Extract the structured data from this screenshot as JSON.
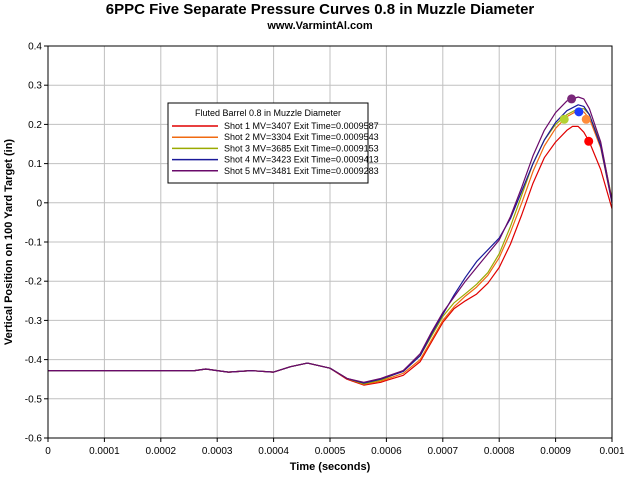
{
  "chart_data": {
    "type": "line",
    "title": "6PPC Five Separate Pressure Curves 0.8 in Muzzle Diameter",
    "subtitle": "www.VarmintAl.com",
    "xlabel": "Time (seconds)",
    "ylabel": "Vertical Position on 100 Yard Target (in)",
    "xlim": [
      0,
      0.001
    ],
    "ylim": [
      -0.6,
      0.4
    ],
    "x_ticks": [
      "0",
      "0.0001",
      "0.0002",
      "0.0003",
      "0.0004",
      "0.0005",
      "0.0006",
      "0.0007",
      "0.0008",
      "0.0009",
      "0.001"
    ],
    "y_ticks": [
      "0.4",
      "0.3",
      "0.2",
      "0.1",
      "0",
      "-0.1",
      "-0.2",
      "-0.3",
      "-0.4",
      "-0.5",
      "-0.6"
    ],
    "grid": true,
    "legend": {
      "title": "Fluted Barrel 0.8 in Muzzle Diameter",
      "placement": "upper-left-center"
    },
    "series": [
      {
        "name": "Shot 1 MV=3407 Exit Time=0.0009587",
        "color": "#e00000",
        "marker_color": "#ff0000",
        "exit": [
          0.0009587,
          0.157
        ],
        "points": [
          [
            0,
            -0.428
          ],
          [
            0.00026,
            -0.428
          ],
          [
            0.00028,
            -0.424
          ],
          [
            0.0003,
            -0.428
          ],
          [
            0.00032,
            -0.432
          ],
          [
            0.00036,
            -0.428
          ],
          [
            0.0004,
            -0.432
          ],
          [
            0.00043,
            -0.418
          ],
          [
            0.00046,
            -0.409
          ],
          [
            0.0005,
            -0.422
          ],
          [
            0.00053,
            -0.45
          ],
          [
            0.00056,
            -0.465
          ],
          [
            0.00059,
            -0.458
          ],
          [
            0.0006,
            -0.453
          ],
          [
            0.00063,
            -0.44
          ],
          [
            0.00066,
            -0.405
          ],
          [
            0.00068,
            -0.355
          ],
          [
            0.0007,
            -0.305
          ],
          [
            0.00072,
            -0.27
          ],
          [
            0.00074,
            -0.25
          ],
          [
            0.00076,
            -0.233
          ],
          [
            0.00078,
            -0.205
          ],
          [
            0.0008,
            -0.165
          ],
          [
            0.00082,
            -0.105
          ],
          [
            0.00084,
            -0.03
          ],
          [
            0.00086,
            0.05
          ],
          [
            0.00088,
            0.115
          ],
          [
            0.0009,
            0.155
          ],
          [
            0.00092,
            0.185
          ],
          [
            0.00093,
            0.195
          ],
          [
            0.00094,
            0.195
          ],
          [
            0.00095,
            0.18
          ],
          [
            0.00096,
            0.155
          ],
          [
            0.00098,
            0.085
          ],
          [
            0.001,
            -0.015
          ]
        ]
      },
      {
        "name": "Shot 2 MV=3304 Exit Time=0.0009543",
        "color": "#f06a10",
        "marker_color": "#ff8c3a",
        "exit": [
          0.0009543,
          0.213
        ],
        "points": [
          [
            0,
            -0.428
          ],
          [
            0.00026,
            -0.428
          ],
          [
            0.00028,
            -0.424
          ],
          [
            0.0003,
            -0.428
          ],
          [
            0.00032,
            -0.432
          ],
          [
            0.00036,
            -0.428
          ],
          [
            0.0004,
            -0.432
          ],
          [
            0.00043,
            -0.418
          ],
          [
            0.00046,
            -0.409
          ],
          [
            0.0005,
            -0.422
          ],
          [
            0.00053,
            -0.448
          ],
          [
            0.00056,
            -0.463
          ],
          [
            0.00059,
            -0.455
          ],
          [
            0.0006,
            -0.45
          ],
          [
            0.00063,
            -0.435
          ],
          [
            0.00066,
            -0.4
          ],
          [
            0.00068,
            -0.35
          ],
          [
            0.0007,
            -0.3
          ],
          [
            0.00072,
            -0.265
          ],
          [
            0.00074,
            -0.238
          ],
          [
            0.00076,
            -0.215
          ],
          [
            0.00078,
            -0.185
          ],
          [
            0.0008,
            -0.14
          ],
          [
            0.00082,
            -0.075
          ],
          [
            0.00084,
            0.0
          ],
          [
            0.00086,
            0.08
          ],
          [
            0.00088,
            0.145
          ],
          [
            0.0009,
            0.19
          ],
          [
            0.00092,
            0.22
          ],
          [
            0.00094,
            0.236
          ],
          [
            0.00095,
            0.232
          ],
          [
            0.00096,
            0.215
          ],
          [
            0.00098,
            0.14
          ],
          [
            0.001,
            0.0
          ]
        ]
      },
      {
        "name": "Shot 3 MV=3685 Exit Time=0.0009153",
        "color": "#9aaa00",
        "marker_color": "#b4d232",
        "exit": [
          0.0009153,
          0.213
        ],
        "points": [
          [
            0,
            -0.428
          ],
          [
            0.00026,
            -0.428
          ],
          [
            0.00028,
            -0.424
          ],
          [
            0.0003,
            -0.428
          ],
          [
            0.00032,
            -0.432
          ],
          [
            0.00036,
            -0.428
          ],
          [
            0.0004,
            -0.432
          ],
          [
            0.00043,
            -0.418
          ],
          [
            0.00046,
            -0.409
          ],
          [
            0.0005,
            -0.422
          ],
          [
            0.00053,
            -0.448
          ],
          [
            0.00056,
            -0.462
          ],
          [
            0.00059,
            -0.452
          ],
          [
            0.0006,
            -0.447
          ],
          [
            0.00063,
            -0.428
          ],
          [
            0.00066,
            -0.39
          ],
          [
            0.00068,
            -0.34
          ],
          [
            0.0007,
            -0.29
          ],
          [
            0.00072,
            -0.255
          ],
          [
            0.00074,
            -0.232
          ],
          [
            0.00076,
            -0.208
          ],
          [
            0.00078,
            -0.178
          ],
          [
            0.0008,
            -0.13
          ],
          [
            0.00082,
            -0.06
          ],
          [
            0.00084,
            0.02
          ],
          [
            0.00086,
            0.1
          ],
          [
            0.00088,
            0.16
          ],
          [
            0.0009,
            0.2
          ],
          [
            0.00092,
            0.225
          ],
          [
            0.00094,
            0.24
          ],
          [
            0.00095,
            0.24
          ],
          [
            0.00096,
            0.225
          ],
          [
            0.00098,
            0.15
          ],
          [
            0.001,
            0.01
          ]
        ]
      },
      {
        "name": "Shot 4 MV=3423 Exit Time=0.0009413",
        "color": "#1a1a9a",
        "marker_color": "#1e3cff",
        "exit": [
          0.0009413,
          0.232
        ],
        "points": [
          [
            0,
            -0.428
          ],
          [
            0.00026,
            -0.428
          ],
          [
            0.00028,
            -0.424
          ],
          [
            0.0003,
            -0.428
          ],
          [
            0.00032,
            -0.432
          ],
          [
            0.00036,
            -0.428
          ],
          [
            0.0004,
            -0.432
          ],
          [
            0.00043,
            -0.418
          ],
          [
            0.00046,
            -0.409
          ],
          [
            0.0005,
            -0.422
          ],
          [
            0.00053,
            -0.448
          ],
          [
            0.00056,
            -0.46
          ],
          [
            0.00059,
            -0.45
          ],
          [
            0.0006,
            -0.445
          ],
          [
            0.00063,
            -0.43
          ],
          [
            0.00066,
            -0.39
          ],
          [
            0.00068,
            -0.335
          ],
          [
            0.0007,
            -0.285
          ],
          [
            0.00072,
            -0.235
          ],
          [
            0.00074,
            -0.19
          ],
          [
            0.00076,
            -0.15
          ],
          [
            0.00078,
            -0.12
          ],
          [
            0.0008,
            -0.09
          ],
          [
            0.00082,
            -0.04
          ],
          [
            0.00084,
            0.03
          ],
          [
            0.00086,
            0.1
          ],
          [
            0.00088,
            0.16
          ],
          [
            0.0009,
            0.205
          ],
          [
            0.00092,
            0.235
          ],
          [
            0.00094,
            0.25
          ],
          [
            0.00095,
            0.246
          ],
          [
            0.00096,
            0.225
          ],
          [
            0.00098,
            0.145
          ],
          [
            0.001,
            0.0
          ]
        ]
      },
      {
        "name": "Shot 5 MV=3481 Exit Time=0.0009283",
        "color": "#6a0a6a",
        "marker_color": "#7a287a",
        "exit": [
          0.0009283,
          0.265
        ],
        "points": [
          [
            0,
            -0.428
          ],
          [
            0.00026,
            -0.428
          ],
          [
            0.00028,
            -0.424
          ],
          [
            0.0003,
            -0.428
          ],
          [
            0.00032,
            -0.432
          ],
          [
            0.00036,
            -0.428
          ],
          [
            0.0004,
            -0.432
          ],
          [
            0.00043,
            -0.418
          ],
          [
            0.00046,
            -0.409
          ],
          [
            0.0005,
            -0.422
          ],
          [
            0.00053,
            -0.448
          ],
          [
            0.00056,
            -0.458
          ],
          [
            0.00059,
            -0.448
          ],
          [
            0.0006,
            -0.443
          ],
          [
            0.00063,
            -0.428
          ],
          [
            0.00066,
            -0.385
          ],
          [
            0.00068,
            -0.33
          ],
          [
            0.0007,
            -0.28
          ],
          [
            0.00072,
            -0.24
          ],
          [
            0.00074,
            -0.2
          ],
          [
            0.00076,
            -0.165
          ],
          [
            0.00078,
            -0.13
          ],
          [
            0.0008,
            -0.095
          ],
          [
            0.00082,
            -0.035
          ],
          [
            0.00084,
            0.04
          ],
          [
            0.00086,
            0.12
          ],
          [
            0.00088,
            0.185
          ],
          [
            0.0009,
            0.23
          ],
          [
            0.00092,
            0.26
          ],
          [
            0.00094,
            0.27
          ],
          [
            0.00095,
            0.265
          ],
          [
            0.00096,
            0.24
          ],
          [
            0.00098,
            0.155
          ],
          [
            0.001,
            0.005
          ]
        ]
      }
    ]
  }
}
